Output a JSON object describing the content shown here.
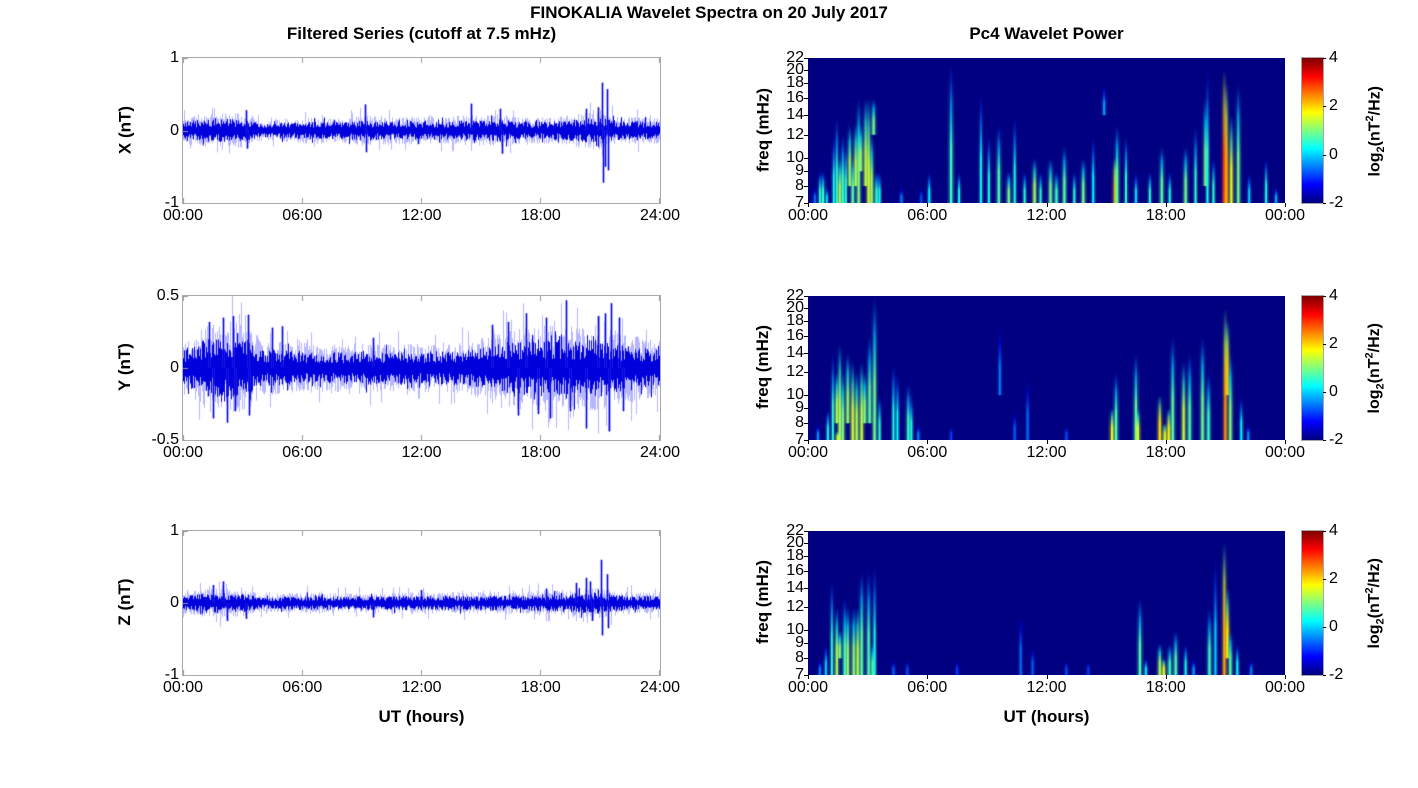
{
  "figure": {
    "title": "FINOKALIA Wavelet Spectra on 20 July 2017",
    "left_column_title": "Filtered Series (cutoff at 7.5 mHz)",
    "right_column_title": "Pc4 Wavelet Power",
    "xlabel": "UT (hours)",
    "colorbar_label": {
      "pre": "log",
      "sub": "2",
      "mid": "(nT",
      "sup": "2",
      "post": "/Hz)"
    },
    "colors": {
      "series_line": "#0000dd",
      "series_halo": "rgba(80,80,255,0.42)",
      "axis_frame": "#a9a9a9",
      "heatmap_background": "#00008f",
      "text": "#000000"
    }
  },
  "chart_data": [
    {
      "type": "line",
      "panel": "x-series",
      "title": "Filtered Series (cutoff at 7.5 mHz)",
      "ylabel": "X (nT)",
      "xlabel": "UT (hours)",
      "xlim_hours": [
        0,
        24
      ],
      "ylim": [
        -1,
        1
      ],
      "ytick_values": [
        1,
        0,
        -1
      ],
      "ytick_labels": [
        "1",
        "0",
        "-1"
      ],
      "xtick_labels": [
        "00:00",
        "06:00",
        "12:00",
        "18:00",
        "24:00"
      ],
      "xtick_hours": [
        0,
        6,
        12,
        18,
        24
      ],
      "seed": 11,
      "noise_envelope_by_hour": [
        0.13,
        0.15,
        0.16,
        0.16,
        0.09,
        0.11,
        0.12,
        0.13,
        0.12,
        0.14,
        0.13,
        0.12,
        0.14,
        0.12,
        0.14,
        0.14,
        0.16,
        0.12,
        0.12,
        0.13,
        0.16,
        0.18,
        0.13,
        0.13,
        0.12
      ],
      "spikes": [
        [
          3.2,
          0.28
        ],
        [
          3.25,
          -0.25
        ],
        [
          9.2,
          0.36
        ],
        [
          9.25,
          -0.3
        ],
        [
          14.5,
          0.37
        ],
        [
          16.0,
          0.3
        ],
        [
          16.1,
          -0.32
        ],
        [
          20.3,
          0.3
        ],
        [
          20.9,
          0.32
        ],
        [
          21.15,
          0.66
        ],
        [
          21.18,
          -0.72
        ],
        [
          21.3,
          -0.5
        ],
        [
          21.4,
          0.57
        ],
        [
          21.42,
          -0.55
        ]
      ]
    },
    {
      "type": "heatmap",
      "panel": "x-wavelet",
      "title": "Pc4 Wavelet Power",
      "ylabel": "freq (mHz)",
      "yscale": "log",
      "ylim_mhz": [
        7,
        22
      ],
      "ytick_values": [
        22,
        20,
        18,
        16,
        14,
        12,
        10,
        9,
        8,
        7
      ],
      "xtick_labels": [
        "00:00",
        "06:00",
        "12:00",
        "18:00",
        "00:00"
      ],
      "xtick_hours": [
        0,
        6,
        12,
        18,
        24
      ],
      "colorbar": {
        "range": [
          -2,
          4
        ],
        "ticks": [
          4,
          2,
          0,
          -2
        ],
        "colormap": "jet",
        "label": "log2(nT^2/Hz)"
      },
      "background_value": -2,
      "streaks": [
        [
          0.35,
          7,
          8,
          -0.6
        ],
        [
          0.6,
          7,
          9,
          0.4
        ],
        [
          0.75,
          7,
          9,
          0.6
        ],
        [
          0.95,
          7,
          8,
          0.0
        ],
        [
          1.3,
          7,
          12,
          0.3
        ],
        [
          1.45,
          7,
          14,
          0.5
        ],
        [
          1.6,
          7,
          10,
          1.3
        ],
        [
          1.75,
          7,
          12,
          0.6
        ],
        [
          1.9,
          7,
          11,
          0.5
        ],
        [
          2.1,
          8,
          13,
          1.2
        ],
        [
          2.25,
          7,
          10,
          0.8
        ],
        [
          2.4,
          8,
          13,
          1.3
        ],
        [
          2.55,
          7,
          16,
          1.0
        ],
        [
          2.65,
          9,
          13,
          1.1
        ],
        [
          2.9,
          8,
          16,
          1.3
        ],
        [
          3.05,
          7,
          16,
          1.5
        ],
        [
          3.2,
          7,
          12,
          1.2
        ],
        [
          3.3,
          12,
          16,
          0.9
        ],
        [
          3.45,
          7,
          9,
          0.6
        ],
        [
          3.6,
          7,
          9,
          0.3
        ],
        [
          4.7,
          7,
          8,
          -0.5
        ],
        [
          5.7,
          7,
          8,
          -0.8
        ],
        [
          6.1,
          7,
          9,
          0.2
        ],
        [
          7.2,
          7,
          21,
          0.6
        ],
        [
          7.6,
          7,
          9,
          0.4
        ],
        [
          8.7,
          7,
          17,
          0.3
        ],
        [
          9.1,
          7,
          12,
          0.4
        ],
        [
          9.6,
          7,
          13,
          0.7
        ],
        [
          10.1,
          7,
          9,
          0.9
        ],
        [
          10.4,
          7,
          14,
          0.4
        ],
        [
          10.9,
          7,
          9,
          0.5
        ],
        [
          11.4,
          7,
          10,
          1.2
        ],
        [
          11.7,
          7,
          9,
          0.5
        ],
        [
          12.2,
          7,
          10,
          0.9
        ],
        [
          12.5,
          7,
          9,
          0.6
        ],
        [
          12.9,
          7,
          11,
          0.8
        ],
        [
          13.4,
          7,
          9,
          0.5
        ],
        [
          13.85,
          7,
          10,
          0.9
        ],
        [
          14.35,
          7,
          12,
          0.2
        ],
        [
          14.9,
          14,
          18,
          -0.3
        ],
        [
          15.45,
          7,
          10,
          2.2
        ],
        [
          15.55,
          7,
          13,
          0.8
        ],
        [
          16.0,
          7,
          12,
          0.5
        ],
        [
          16.5,
          7,
          9,
          0.1
        ],
        [
          17.2,
          7,
          9,
          0.5
        ],
        [
          17.8,
          7,
          11,
          0.8
        ],
        [
          18.2,
          7,
          9,
          0.4
        ],
        [
          19.0,
          7,
          11,
          0.9
        ],
        [
          19.5,
          7,
          13,
          0.5
        ],
        [
          20.0,
          8,
          16,
          1.0
        ],
        [
          20.1,
          7,
          20,
          0.4
        ],
        [
          20.4,
          7,
          10,
          0.5
        ],
        [
          20.95,
          7,
          20,
          3.0
        ],
        [
          21.05,
          7,
          18,
          2.2
        ],
        [
          21.3,
          7,
          14,
          1.6
        ],
        [
          21.65,
          7,
          18,
          0.9
        ],
        [
          22.2,
          7,
          9,
          0.0
        ],
        [
          23.05,
          7,
          10,
          0.4
        ],
        [
          23.55,
          7,
          8,
          -0.2
        ]
      ]
    },
    {
      "type": "line",
      "panel": "y-series",
      "ylabel": "Y (nT)",
      "xlabel": "UT (hours)",
      "xlim_hours": [
        0,
        24
      ],
      "ylim": [
        -0.5,
        0.5
      ],
      "ytick_values": [
        0.5,
        0,
        -0.5
      ],
      "ytick_labels": [
        "0.5",
        "0",
        "-0.5"
      ],
      "xtick_labels": [
        "00:00",
        "06:00",
        "12:00",
        "18:00",
        "24:00"
      ],
      "xtick_hours": [
        0,
        6,
        12,
        18,
        24
      ],
      "seed": 22,
      "noise_envelope_by_hour": [
        0.13,
        0.19,
        0.21,
        0.22,
        0.13,
        0.12,
        0.12,
        0.11,
        0.11,
        0.12,
        0.11,
        0.12,
        0.11,
        0.12,
        0.12,
        0.14,
        0.17,
        0.19,
        0.2,
        0.2,
        0.19,
        0.2,
        0.17,
        0.15,
        0.13
      ],
      "spikes": [
        [
          1.3,
          0.32
        ],
        [
          1.5,
          -0.35
        ],
        [
          2.0,
          0.35
        ],
        [
          2.2,
          -0.38
        ],
        [
          2.5,
          0.36
        ],
        [
          2.6,
          -0.3
        ],
        [
          3.3,
          0.37
        ],
        [
          3.35,
          -0.33
        ],
        [
          4.5,
          0.28
        ],
        [
          5.0,
          0.29
        ],
        [
          9.6,
          0.21
        ],
        [
          15.6,
          0.3
        ],
        [
          16.4,
          0.32
        ],
        [
          16.9,
          -0.33
        ],
        [
          17.3,
          0.38
        ],
        [
          17.9,
          -0.32
        ],
        [
          18.3,
          0.35
        ],
        [
          18.5,
          -0.35
        ],
        [
          19.3,
          0.47
        ],
        [
          19.5,
          -0.3
        ],
        [
          20.3,
          -0.42
        ],
        [
          20.9,
          0.36
        ],
        [
          21.3,
          0.38
        ],
        [
          21.5,
          -0.44
        ],
        [
          21.6,
          0.45
        ],
        [
          22.0,
          0.35
        ],
        [
          22.2,
          -0.3
        ]
      ]
    },
    {
      "type": "heatmap",
      "panel": "y-wavelet",
      "ylabel": "freq (mHz)",
      "yscale": "log",
      "ylim_mhz": [
        7,
        22
      ],
      "ytick_values": [
        22,
        20,
        18,
        16,
        14,
        12,
        10,
        9,
        8,
        7
      ],
      "xtick_labels": [
        "00:00",
        "06:00",
        "12:00",
        "18:00",
        "00:00"
      ],
      "xtick_hours": [
        0,
        6,
        12,
        18,
        24
      ],
      "colorbar": {
        "range": [
          -2,
          4
        ],
        "ticks": [
          4,
          2,
          0,
          -2
        ],
        "colormap": "jet",
        "label": "log2(nT^2/Hz)"
      },
      "background_value": -2,
      "streaks": [
        [
          0.5,
          7,
          8,
          -0.4
        ],
        [
          1.0,
          7,
          9,
          0.3
        ],
        [
          1.25,
          7,
          14,
          0.5
        ],
        [
          1.45,
          8,
          12,
          1.2
        ],
        [
          1.5,
          7,
          7.5,
          1.6
        ],
        [
          1.6,
          7,
          15,
          1.3
        ],
        [
          1.75,
          7,
          12,
          1.0
        ],
        [
          2.0,
          8,
          14,
          1.1
        ],
        [
          2.25,
          7,
          13,
          1.5
        ],
        [
          2.45,
          7,
          12,
          1.2
        ],
        [
          2.7,
          7,
          13,
          1.4
        ],
        [
          2.85,
          8,
          12,
          1.0
        ],
        [
          3.1,
          8,
          16,
          0.8
        ],
        [
          3.35,
          7,
          22,
          0.9
        ],
        [
          3.6,
          7,
          10,
          0.5
        ],
        [
          4.3,
          7,
          13,
          0.4
        ],
        [
          4.5,
          7,
          12,
          0.3
        ],
        [
          5.05,
          7,
          11,
          0.6
        ],
        [
          5.2,
          7,
          10,
          0.4
        ],
        [
          5.55,
          7,
          8,
          -0.5
        ],
        [
          7.2,
          7,
          8,
          -0.9
        ],
        [
          9.65,
          10,
          18,
          -0.5
        ],
        [
          10.4,
          7,
          9,
          -0.7
        ],
        [
          11.05,
          7,
          12,
          -0.6
        ],
        [
          13.0,
          7,
          8,
          -0.8
        ],
        [
          15.3,
          7,
          9,
          1.7
        ],
        [
          15.5,
          7,
          12,
          0.7
        ],
        [
          16.5,
          7,
          14,
          0.8
        ],
        [
          16.6,
          7,
          9,
          1.5
        ],
        [
          17.7,
          7,
          10,
          1.9
        ],
        [
          17.95,
          7,
          8,
          1.5
        ],
        [
          18.15,
          7,
          9,
          1.8
        ],
        [
          18.35,
          7,
          16,
          0.8
        ],
        [
          18.9,
          7,
          13,
          1.4
        ],
        [
          19.2,
          7,
          14,
          0.7
        ],
        [
          19.85,
          7,
          16,
          0.9
        ],
        [
          20.15,
          7,
          12,
          0.6
        ],
        [
          21.0,
          7,
          20,
          2.4
        ],
        [
          21.1,
          10,
          18,
          2.0
        ],
        [
          21.25,
          7,
          14,
          1.0
        ],
        [
          21.8,
          7,
          10,
          0.2
        ],
        [
          22.15,
          7,
          8,
          -0.4
        ]
      ]
    },
    {
      "type": "line",
      "panel": "z-series",
      "ylabel": "Z (nT)",
      "xlabel": "UT (hours)",
      "xlim_hours": [
        0,
        24
      ],
      "ylim": [
        -1,
        1
      ],
      "ytick_values": [
        1,
        0,
        -1
      ],
      "ytick_labels": [
        "1",
        "0",
        "-1"
      ],
      "xtick_labels": [
        "00:00",
        "06:00",
        "12:00",
        "18:00",
        "24:00"
      ],
      "xtick_hours": [
        0,
        6,
        12,
        18,
        24
      ],
      "seed": 33,
      "noise_envelope_by_hour": [
        0.1,
        0.13,
        0.14,
        0.13,
        0.08,
        0.09,
        0.1,
        0.1,
        0.09,
        0.1,
        0.09,
        0.1,
        0.1,
        0.1,
        0.1,
        0.1,
        0.11,
        0.1,
        0.12,
        0.12,
        0.14,
        0.15,
        0.11,
        0.1,
        0.1
      ],
      "spikes": [
        [
          1.5,
          0.25
        ],
        [
          2.0,
          0.3
        ],
        [
          2.2,
          -0.25
        ],
        [
          3.2,
          -0.22
        ],
        [
          9.6,
          -0.2
        ],
        [
          12.0,
          0.18
        ],
        [
          18.3,
          0.2
        ],
        [
          19.8,
          0.28
        ],
        [
          20.3,
          0.35
        ],
        [
          20.5,
          0.3
        ],
        [
          20.6,
          -0.25
        ],
        [
          21.1,
          0.6
        ],
        [
          21.15,
          -0.45
        ],
        [
          21.4,
          0.4
        ],
        [
          21.45,
          -0.35
        ]
      ]
    },
    {
      "type": "heatmap",
      "panel": "z-wavelet",
      "ylabel": "freq (mHz)",
      "yscale": "log",
      "ylim_mhz": [
        7,
        22
      ],
      "ytick_values": [
        22,
        20,
        18,
        16,
        14,
        12,
        10,
        9,
        8,
        7
      ],
      "xtick_labels": [
        "00:00",
        "06:00",
        "12:00",
        "18:00",
        "00:00"
      ],
      "xtick_hours": [
        0,
        6,
        12,
        18,
        24
      ],
      "colorbar": {
        "range": [
          -2,
          4
        ],
        "ticks": [
          4,
          2,
          0,
          -2
        ],
        "colormap": "jet",
        "label": "log2(nT^2/Hz)"
      },
      "background_value": -2,
      "streaks": [
        [
          0.6,
          7,
          8,
          -0.5
        ],
        [
          0.9,
          7,
          9,
          0.0
        ],
        [
          1.2,
          7,
          15,
          0.5
        ],
        [
          1.45,
          7,
          12,
          1.2
        ],
        [
          1.6,
          8,
          10,
          1.0
        ],
        [
          1.85,
          7,
          13,
          0.6
        ],
        [
          2.0,
          7,
          12,
          1.1
        ],
        [
          2.3,
          7,
          12,
          1.0
        ],
        [
          2.5,
          7,
          12,
          1.3
        ],
        [
          2.7,
          7,
          16,
          0.8
        ],
        [
          3.05,
          7,
          16,
          0.7
        ],
        [
          3.25,
          7,
          9,
          0.8
        ],
        [
          3.35,
          7,
          17,
          0.4
        ],
        [
          4.3,
          7,
          8,
          -0.7
        ],
        [
          5.0,
          7,
          8,
          -0.8
        ],
        [
          7.5,
          7,
          8,
          -0.9
        ],
        [
          10.7,
          7,
          12,
          -0.6
        ],
        [
          11.3,
          7,
          9,
          -0.7
        ],
        [
          13.0,
          7,
          8,
          -0.8
        ],
        [
          14.1,
          7,
          8,
          -0.9
        ],
        [
          16.7,
          7,
          13,
          0.7
        ],
        [
          17.0,
          7,
          8,
          0.2
        ],
        [
          17.7,
          7,
          9,
          1.2
        ],
        [
          17.9,
          7,
          8,
          1.6
        ],
        [
          18.2,
          7,
          9,
          0.6
        ],
        [
          18.5,
          7,
          10,
          0.7
        ],
        [
          19.0,
          7,
          9,
          0.4
        ],
        [
          19.4,
          7,
          8,
          -0.3
        ],
        [
          20.2,
          7,
          12,
          0.6
        ],
        [
          20.5,
          7,
          18,
          0.0
        ],
        [
          20.95,
          7,
          20,
          2.3
        ],
        [
          21.1,
          8,
          14,
          1.8
        ],
        [
          21.25,
          7,
          10,
          0.8
        ],
        [
          21.6,
          7,
          9,
          0.3
        ],
        [
          22.3,
          7,
          8,
          -0.5
        ]
      ]
    }
  ]
}
